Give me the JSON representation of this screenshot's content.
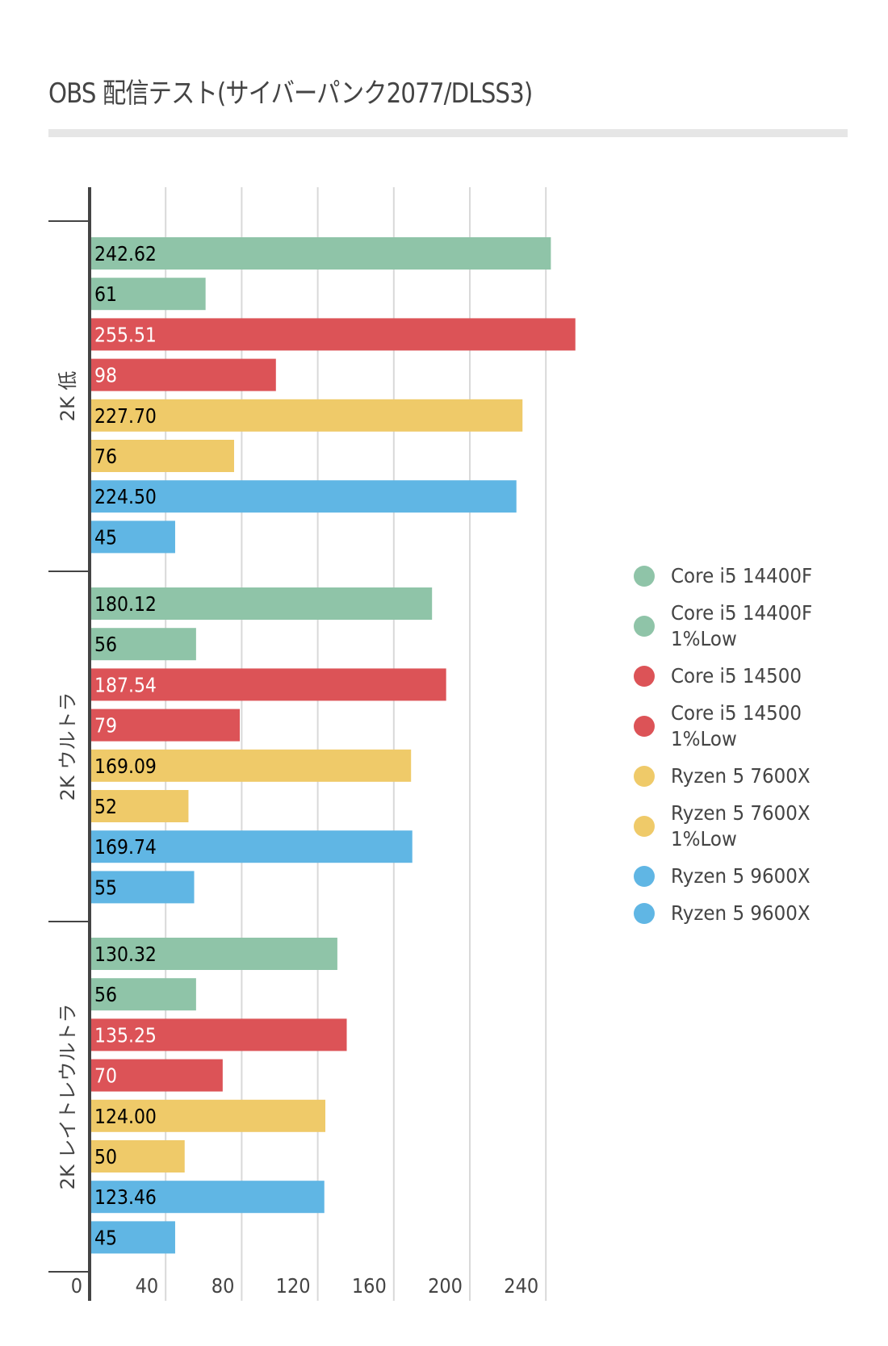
{
  "chart_data": {
    "type": "bar",
    "orientation": "horizontal",
    "title": "OBS 配信テスト(サイバーパンク2077/DLSS3)",
    "xlabel": "",
    "ylabel": "",
    "xlim": [
      0,
      260
    ],
    "x_ticks": [
      "0",
      "40",
      "80",
      "120",
      "160",
      "200",
      "240"
    ],
    "grid": true,
    "legend_position": "right",
    "categories": [
      "2K 低",
      "2K ウルトラ",
      "2K レイトレウルトラ"
    ],
    "series": [
      {
        "name": "Core i5 14400F",
        "color": "#8fc4a8",
        "label_color": "#000000",
        "values": [
          242.62,
          180.12,
          130.32
        ],
        "labels": [
          "242.62",
          "180.12",
          "130.32"
        ]
      },
      {
        "name": "Core i5 14400F\n1%Low",
        "color": "#8fc4a8",
        "label_color": "#000000",
        "values": [
          61,
          56,
          56
        ],
        "labels": [
          "61",
          "56",
          "56"
        ]
      },
      {
        "name": "Core i5 14500",
        "color": "#dc5357",
        "label_color": "#ffffff",
        "values": [
          255.51,
          187.54,
          135.25
        ],
        "labels": [
          "255.51",
          "187.54",
          "135.25"
        ]
      },
      {
        "name": "Core i5 14500\n1%Low",
        "color": "#dc5357",
        "label_color": "#ffffff",
        "values": [
          98,
          79,
          70
        ],
        "labels": [
          "98",
          "79",
          "70"
        ]
      },
      {
        "name": "Ryzen 5 7600X",
        "color": "#efca69",
        "label_color": "#000000",
        "values": [
          227.7,
          169.09,
          124.0
        ],
        "labels": [
          "227.70",
          "169.09",
          "124.00"
        ]
      },
      {
        "name": "Ryzen 5 7600X\n1%Low",
        "color": "#efca69",
        "label_color": "#000000",
        "values": [
          76,
          52,
          50
        ],
        "labels": [
          "76",
          "52",
          "50"
        ]
      },
      {
        "name": "Ryzen 5 9600X",
        "color": "#60b6e4",
        "label_color": "#000000",
        "values": [
          224.5,
          169.74,
          123.46
        ],
        "labels": [
          "224.50",
          "169.74",
          "123.46"
        ]
      },
      {
        "name": "Ryzen 5 9600X",
        "color": "#60b6e4",
        "label_color": "#000000",
        "values": [
          45,
          55,
          45
        ],
        "labels": [
          "45",
          "55",
          "45"
        ]
      }
    ]
  }
}
